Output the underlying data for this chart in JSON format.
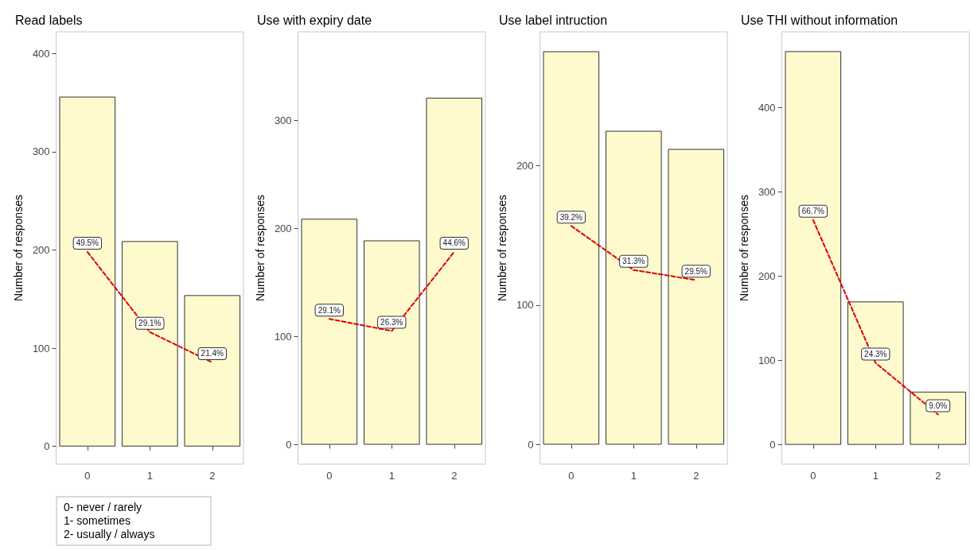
{
  "chart_data": [
    {
      "type": "bar",
      "title": "Read labels",
      "ylabel": "Number of responses",
      "categories": [
        "0",
        "1",
        "2"
      ],
      "ylim": [
        -18,
        422
      ],
      "yticks": [
        0,
        100,
        200,
        300,
        400
      ],
      "y2lim": [
        -4.5,
        105.5
      ],
      "grid": false,
      "series": [
        {
          "type": "bar",
          "color": "#fffacd",
          "values": [
            356,
            209,
            154
          ]
        },
        {
          "type": "line",
          "axis": "y2",
          "color": "#dd0000",
          "line_style": "dashed",
          "values": [
            49.5,
            29.1,
            21.4
          ],
          "value_labels": [
            "49.5%",
            "29.1%",
            "21.4%"
          ]
        }
      ],
      "annotations": [
        "0- never / rarely",
        "1- sometimes",
        "2- usually / always"
      ]
    },
    {
      "type": "bar",
      "title": "Use with expiry date",
      "ylabel": "Number of responses",
      "categories": [
        "0",
        "1",
        "2"
      ],
      "ylim": [
        -18,
        382
      ],
      "yticks": [
        0,
        100,
        200,
        300
      ],
      "y2lim": [
        -4.5,
        95.5
      ],
      "grid": false,
      "series": [
        {
          "type": "bar",
          "color": "#fffacd",
          "values": [
            209,
            189,
            321
          ]
        },
        {
          "type": "line",
          "axis": "y2",
          "color": "#dd0000",
          "line_style": "dashed",
          "values": [
            29.1,
            26.3,
            44.6
          ],
          "value_labels": [
            "29.1%",
            "26.3%",
            "44.6%"
          ]
        }
      ]
    },
    {
      "type": "bar",
      "title": "Use label intruction",
      "ylabel": "Number of responses",
      "categories": [
        "0",
        "1",
        "2"
      ],
      "ylim": [
        -14,
        296
      ],
      "yticks": [
        0,
        100,
        200
      ],
      "y2lim": [
        -3.5,
        74
      ],
      "grid": false,
      "series": [
        {
          "type": "bar",
          "color": "#fffacd",
          "values": [
            282,
            225,
            212
          ]
        },
        {
          "type": "line",
          "axis": "y2",
          "color": "#dd0000",
          "line_style": "dashed",
          "values": [
            39.2,
            31.3,
            29.5
          ],
          "value_labels": [
            "39.2%",
            "31.3%",
            "29.5%"
          ]
        }
      ]
    },
    {
      "type": "bar",
      "title": "Use THI without information",
      "ylabel": "Number of responses",
      "categories": [
        "0",
        "1",
        "2"
      ],
      "ylim": [
        -23,
        490
      ],
      "yticks": [
        0,
        100,
        200,
        300,
        400
      ],
      "y2lim": [
        -5.75,
        122.5
      ],
      "grid": false,
      "series": [
        {
          "type": "bar",
          "color": "#fffacd",
          "values": [
            467,
            170,
            63
          ]
        },
        {
          "type": "line",
          "axis": "y2",
          "color": "#dd0000",
          "line_style": "dashed",
          "values": [
            66.7,
            24.3,
            9.0
          ],
          "value_labels": [
            "66.7%",
            "24.3%",
            "9.0%"
          ]
        }
      ]
    }
  ]
}
